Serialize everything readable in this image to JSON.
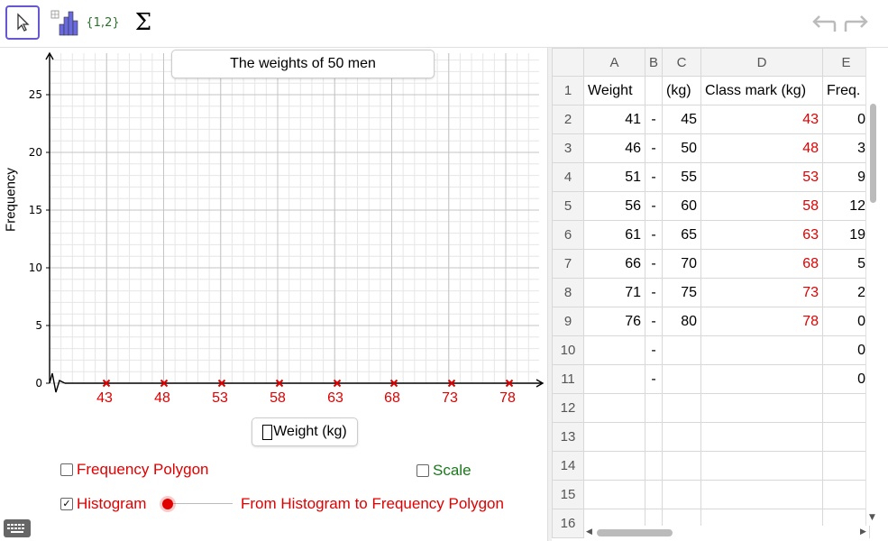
{
  "toolbar": {
    "tools": [
      {
        "name": "move-tool",
        "icon": "cursor-arrow-icon"
      },
      {
        "name": "histogram-tool",
        "icon": "histogram-icon"
      },
      {
        "name": "list-tool",
        "label": "{1,2}"
      },
      {
        "name": "sum-tool",
        "label": "Σ"
      }
    ]
  },
  "graph": {
    "title": "The weights of 50 men",
    "ylabel": "Frequency",
    "xlabel": "Weight (kg)",
    "yticks": [
      "0",
      "5",
      "10",
      "15",
      "20",
      "25"
    ],
    "xticks": [
      "43",
      "48",
      "53",
      "58",
      "63",
      "68",
      "73",
      "78"
    ]
  },
  "controls": {
    "freq_polygon_label": "Frequency Polygon",
    "freq_polygon_checked": false,
    "scale_label": "Scale",
    "scale_checked": false,
    "histogram_label": "Histogram",
    "histogram_checked": true,
    "slider_caption": "From Histogram to Frequency Polygon",
    "slider_value": 0
  },
  "spreadsheet": {
    "columns": [
      "A",
      "B",
      "C",
      "D",
      "E"
    ],
    "rows": [
      {
        "n": "1",
        "a": "Weight",
        "b": "",
        "c": "(kg)",
        "d": "Class mark (kg)",
        "e": "Freq."
      },
      {
        "n": "2",
        "a": "41",
        "b": "-",
        "c": "45",
        "d": "43",
        "e": "0"
      },
      {
        "n": "3",
        "a": "46",
        "b": "-",
        "c": "50",
        "d": "48",
        "e": "3"
      },
      {
        "n": "4",
        "a": "51",
        "b": "-",
        "c": "55",
        "d": "53",
        "e": "9"
      },
      {
        "n": "5",
        "a": "56",
        "b": "-",
        "c": "60",
        "d": "58",
        "e": "12"
      },
      {
        "n": "6",
        "a": "61",
        "b": "-",
        "c": "65",
        "d": "63",
        "e": "19"
      },
      {
        "n": "7",
        "a": "66",
        "b": "-",
        "c": "70",
        "d": "68",
        "e": "5"
      },
      {
        "n": "8",
        "a": "71",
        "b": "-",
        "c": "75",
        "d": "73",
        "e": "2"
      },
      {
        "n": "9",
        "a": "76",
        "b": "-",
        "c": "80",
        "d": "78",
        "e": "0"
      },
      {
        "n": "10",
        "a": "",
        "b": "-",
        "c": "",
        "d": "",
        "e": "0"
      },
      {
        "n": "11",
        "a": "",
        "b": "-",
        "c": "",
        "d": "",
        "e": "0"
      },
      {
        "n": "12",
        "a": "",
        "b": "",
        "c": "",
        "d": "",
        "e": ""
      },
      {
        "n": "13",
        "a": "",
        "b": "",
        "c": "",
        "d": "",
        "e": ""
      },
      {
        "n": "14",
        "a": "",
        "b": "",
        "c": "",
        "d": "",
        "e": ""
      },
      {
        "n": "15",
        "a": "",
        "b": "",
        "c": "",
        "d": "",
        "e": ""
      },
      {
        "n": "16",
        "a": "",
        "b": "",
        "c": "",
        "d": "",
        "e": ""
      }
    ]
  },
  "colors": {
    "accent": "#6557d2",
    "red": "#e00000",
    "green": "#1a7a1a"
  }
}
